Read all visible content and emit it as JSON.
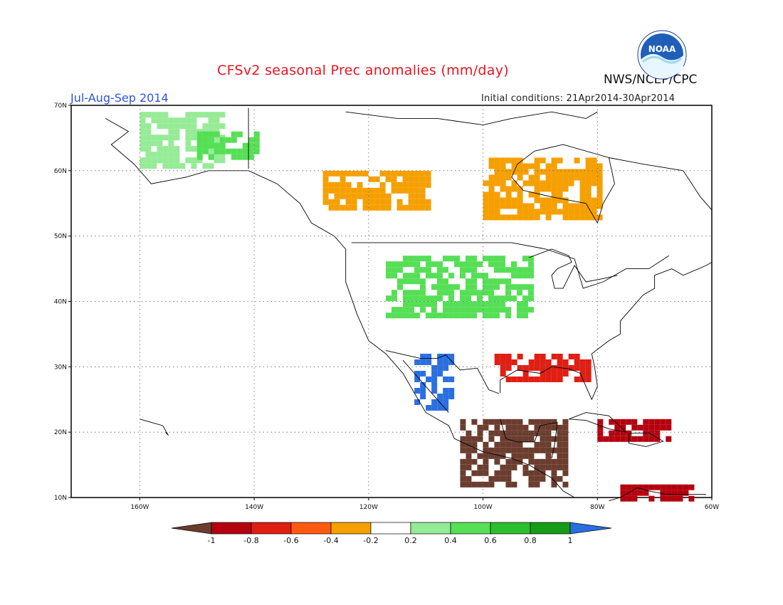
{
  "header": {
    "title": "CFSv2 seasonal Prec anomalies (mm/day)",
    "agency": "NWS/NCEP/CPC",
    "season": "Jul-Aug-Sep 2014",
    "initial_conditions": "Initial conditions: 21Apr2014-30Apr2014",
    "logo_text": "NOAA"
  },
  "map": {
    "lon_range": [
      -172,
      -60
    ],
    "lat_range": [
      10,
      70
    ],
    "lon_ticks": [
      "160W",
      "140W",
      "120W",
      "100W",
      "80W",
      "60W"
    ],
    "lat_ticks": [
      "70N",
      "60N",
      "50N",
      "40N",
      "30N",
      "20N",
      "10N"
    ],
    "gridlines": "dotted"
  },
  "legend": {
    "labels": [
      "-1",
      "-0.8",
      "-0.6",
      "-0.4",
      "-0.2",
      "0.2",
      "0.4",
      "0.6",
      "0.8",
      "1"
    ],
    "colors": [
      "#6b3d2e",
      "#b4000e",
      "#e01e12",
      "#ff5a10",
      "#f5a000",
      "#ffffff",
      "#96eb96",
      "#55df55",
      "#2dbe2d",
      "#169c16",
      "#2a6fe0"
    ]
  },
  "colors": {
    "coast": "#000000",
    "land_outline": "#000000",
    "positive_1": "#96eb96",
    "positive_2": "#55df55",
    "positive_3": "#2dbe2d",
    "positive_4": "#169c16",
    "positive_5": "#2a6fe0",
    "negative_1": "#f5a000",
    "negative_2": "#ff5a10",
    "negative_3": "#e01e12",
    "negative_4": "#b4000e",
    "negative_5": "#6b3d2e"
  },
  "anomaly_cells": [
    {
      "region": "Alaska north slope",
      "lon": [
        -160,
        -146
      ],
      "lat": [
        61,
        69
      ],
      "class": "positive_1"
    },
    {
      "region": "Alaska interior",
      "lon": [
        -150,
        -140
      ],
      "lat": [
        62,
        66
      ],
      "class": "positive_2"
    },
    {
      "region": "Western Canada / Yukon",
      "lon": [
        -128,
        -110
      ],
      "lat": [
        54,
        60
      ],
      "class": "negative_1"
    },
    {
      "region": "Hudson Bay",
      "lon": [
        -100,
        -80
      ],
      "lat": [
        53,
        62
      ],
      "class": "negative_1"
    },
    {
      "region": "Northern Plains / Rockies",
      "lon": [
        -117,
        -92
      ],
      "lat": [
        38,
        47
      ],
      "class": "positive_2"
    },
    {
      "region": "Southwest Mexico (Sierra Madre)",
      "lon": [
        -112,
        -106
      ],
      "lat": [
        24,
        32
      ],
      "class": "positive_5"
    },
    {
      "region": "Gulf Coast",
      "lon": [
        -98,
        -82
      ],
      "lat": [
        28,
        32
      ],
      "class": "negative_3"
    },
    {
      "region": "Southern Mexico / Central America",
      "lon": [
        -104,
        -86
      ],
      "lat": [
        12,
        22
      ],
      "class": "negative_5"
    },
    {
      "region": "Caribbean / Hispaniola",
      "lon": [
        -80,
        -68
      ],
      "lat": [
        19,
        22
      ],
      "class": "negative_4"
    },
    {
      "region": "Venezuela coast",
      "lon": [
        -76,
        -64
      ],
      "lat": [
        10,
        12
      ],
      "class": "negative_4"
    }
  ]
}
